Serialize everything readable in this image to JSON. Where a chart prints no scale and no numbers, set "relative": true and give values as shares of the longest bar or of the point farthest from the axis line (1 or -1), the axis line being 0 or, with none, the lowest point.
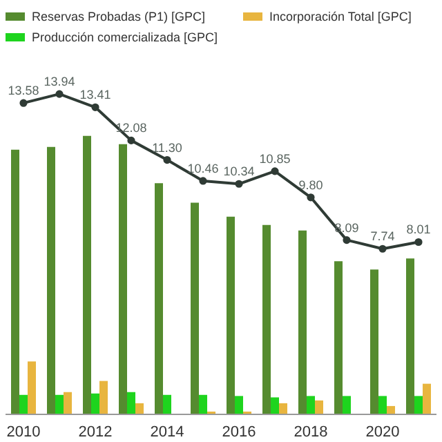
{
  "chart_data": [
    {
      "type": "bar",
      "relative": true,
      "legend": "top",
      "categories": [
        "2010",
        null,
        "2012",
        null,
        "2014",
        null,
        "2016",
        null,
        "2018",
        null,
        "2020",
        null
      ],
      "series": [
        {
          "name": "Reservas Probadas (P1) [GPC]",
          "color": "#558b2f",
          "values": [
            0.95,
            0.96,
            1,
            0.97,
            0.83,
            0.76,
            0.71,
            0.68,
            0.66,
            0.55,
            0.52,
            0.56
          ]
        },
        {
          "name": "Producción comercializada [GPC]",
          "color": "#1ed41e",
          "values": [
            0.07,
            0.07,
            0.075,
            0.08,
            0.07,
            0.07,
            0.066,
            0.061,
            0.066,
            0.066,
            0.066,
            0.066
          ]
        },
        {
          "name": "Incorporación Total [GPC]",
          "color": "#e8b53f",
          "values": [
            0.19,
            0.08,
            0.12,
            0.04,
            0,
            0.01,
            0.01,
            0.04,
            0.05,
            0,
            0.03,
            0.11
          ]
        }
      ]
    },
    {
      "type": "line",
      "data_labels": true,
      "marker": "circle",
      "categories": [
        null,
        null,
        null,
        null,
        null,
        null,
        null,
        null,
        null,
        null,
        null,
        null
      ],
      "series": [
        {
          "color": "#2f3b35",
          "values": [
            13.58,
            13.94,
            13.41,
            12.08,
            11.3,
            10.46,
            10.34,
            10.85,
            9.8,
            8.09,
            7.74,
            8.01
          ],
          "value_labels": [
            "13.58",
            "13.94",
            "13.41",
            "12.08",
            "11.30",
            "10.46",
            "10.34",
            "10.85",
            "9.80",
            "8.09",
            "7.74",
            "8.01"
          ]
        }
      ]
    }
  ]
}
